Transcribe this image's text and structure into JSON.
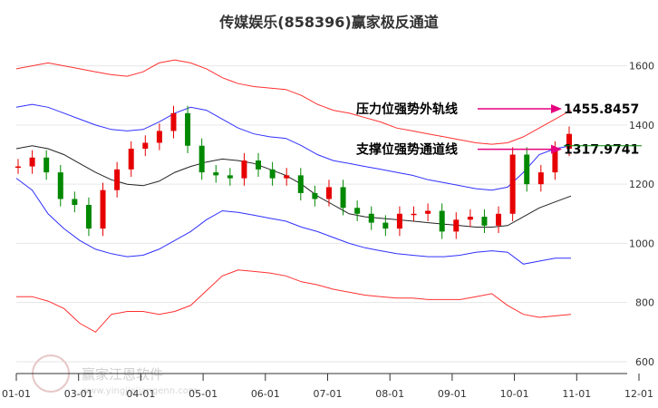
{
  "chart_data": {
    "type": "line",
    "title": "传媒娱乐(858396)赢家极反通道",
    "x_ticks": [
      "01-01",
      "03-01",
      "04-01",
      "05-01",
      "06-01",
      "07-01",
      "08-01",
      "09-01",
      "10-01",
      "11-01",
      "12-01"
    ],
    "y_ticks": [
      600,
      800,
      1000,
      1200,
      1400,
      1600
    ],
    "ylim": [
      560,
      1700
    ],
    "grid": true,
    "series": [
      {
        "color": "#ff3030",
        "values": [
          1590,
          1600,
          1610,
          1600,
          1590,
          1580,
          1570,
          1565,
          1580,
          1610,
          1620,
          1610,
          1590,
          1560,
          1540,
          1530,
          1525,
          1520,
          1500,
          1470,
          1450,
          1440,
          1425,
          1410,
          1390,
          1380,
          1370,
          1360,
          1350,
          1340,
          1335,
          1340,
          1360,
          1390,
          1420,
          1450
        ]
      },
      {
        "color": "#3030ff",
        "values": [
          1460,
          1470,
          1460,
          1440,
          1420,
          1400,
          1385,
          1380,
          1385,
          1410,
          1440,
          1460,
          1450,
          1420,
          1390,
          1370,
          1360,
          1355,
          1330,
          1300,
          1280,
          1270,
          1260,
          1250,
          1240,
          1230,
          1215,
          1205,
          1195,
          1185,
          1180,
          1190,
          1240,
          1300,
          1320,
          1330
        ]
      },
      {
        "color": "#222222",
        "values": [
          1320,
          1330,
          1320,
          1300,
          1270,
          1240,
          1215,
          1200,
          1195,
          1210,
          1240,
          1260,
          1275,
          1285,
          1280,
          1270,
          1250,
          1230,
          1200,
          1160,
          1130,
          1100,
          1090,
          1085,
          1080,
          1075,
          1070,
          1065,
          1060,
          1055,
          1055,
          1060,
          1090,
          1120,
          1140,
          1160
        ]
      },
      {
        "color": "#3030ff",
        "values": [
          1220,
          1180,
          1100,
          1050,
          1010,
          980,
          965,
          955,
          960,
          980,
          1010,
          1040,
          1080,
          1110,
          1105,
          1095,
          1085,
          1075,
          1055,
          1040,
          1020,
          1000,
          985,
          975,
          965,
          960,
          955,
          955,
          960,
          970,
          975,
          970,
          930,
          940,
          950,
          950
        ]
      },
      {
        "color": "#ff3030",
        "values": [
          820,
          820,
          805,
          780,
          730,
          700,
          760,
          770,
          770,
          760,
          770,
          790,
          840,
          890,
          910,
          905,
          900,
          890,
          870,
          860,
          845,
          835,
          825,
          820,
          815,
          815,
          810,
          810,
          810,
          820,
          830,
          790,
          760,
          750,
          755,
          760
        ]
      }
    ],
    "candles": [
      1260,
      1290,
      1240,
      1150,
      1130,
      1050,
      1180,
      1250,
      1320,
      1340,
      1380,
      1440,
      1330,
      1240,
      1230,
      1220,
      1280,
      1250,
      1220,
      1230,
      1170,
      1150,
      1190,
      1120,
      1100,
      1070,
      1050,
      1100,
      1100,
      1110,
      1040,
      1080,
      1090,
      1060,
      1100,
      1300,
      1200,
      1240,
      1320,
      1370
    ],
    "annotations": [
      {
        "label": "压力位强势外轨线",
        "value": "1455.8457",
        "y": 1455
      },
      {
        "label": "支撑位强势通道线",
        "value": "1317.9741",
        "y": 1318
      }
    ],
    "watermark": {
      "brand": "赢家江恩软件",
      "url": "www.yingjiajiangenn.com"
    }
  }
}
